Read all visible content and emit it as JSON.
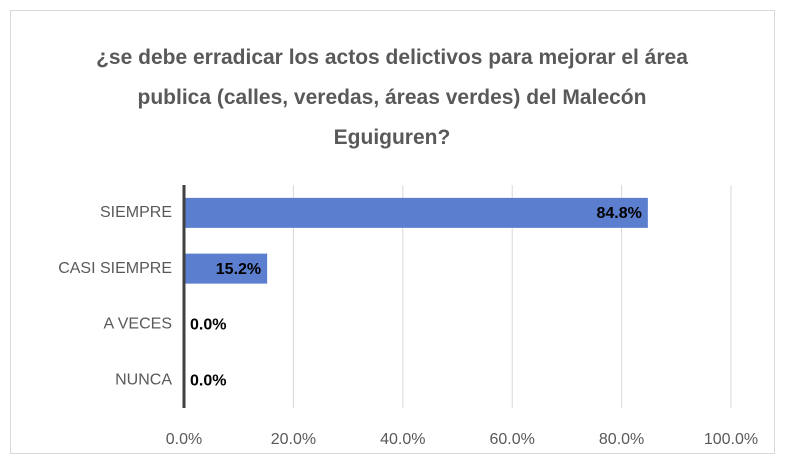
{
  "chart_data": {
    "type": "hbar",
    "title": "¿se debe erradicar los actos delictivos para mejorar el área publica (calles, veredas, áreas verdes) del Malecón Eguiguren?",
    "categories": [
      "SIEMPRE",
      "CASI SIEMPRE",
      "A VECES",
      "NUNCA"
    ],
    "values": [
      84.8,
      15.2,
      0,
      0
    ],
    "value_labels": [
      "84.8%",
      "15.2%",
      "0.0%",
      "0.0%"
    ],
    "color": "#5b7fce",
    "xlim": [
      0,
      100
    ],
    "xticks": [
      {
        "value": 0,
        "label": "0.0%"
      },
      {
        "value": 20,
        "label": "20.0%"
      },
      {
        "value": 40,
        "label": "40.0%"
      },
      {
        "value": 60,
        "label": "60.0%"
      },
      {
        "value": 80,
        "label": "80.0%"
      },
      {
        "value": 100,
        "label": "100.0%"
      }
    ],
    "grid": true
  }
}
